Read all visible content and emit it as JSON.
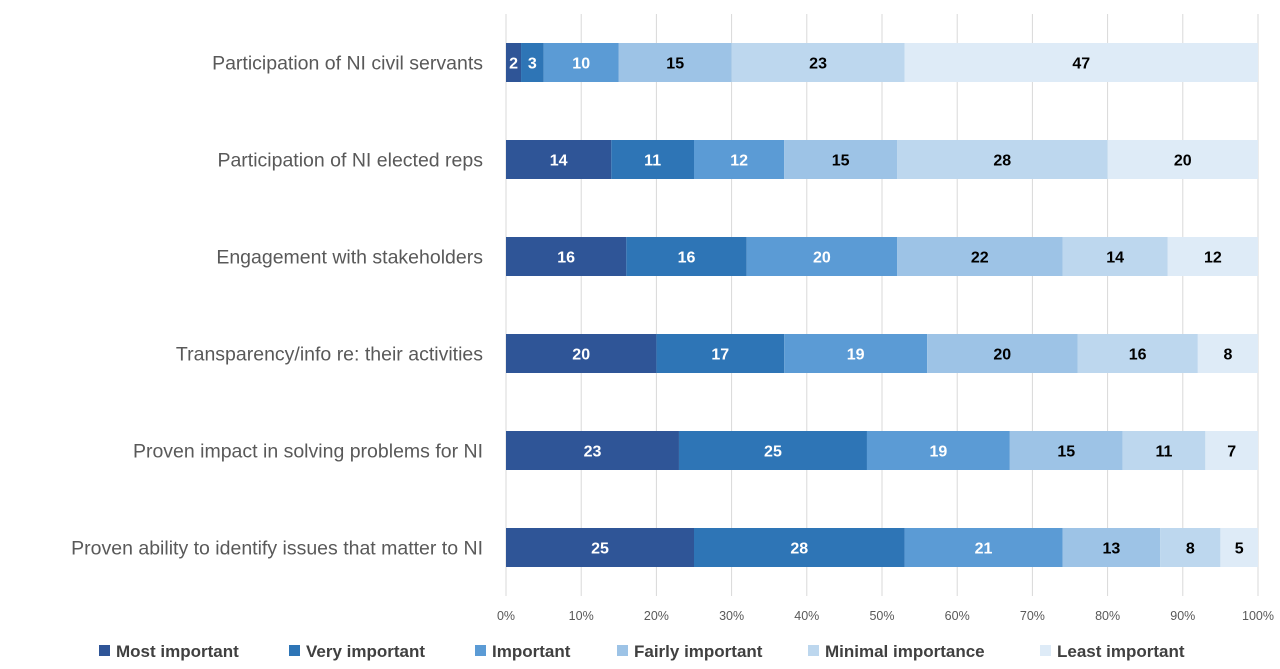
{
  "chart_data": {
    "type": "bar",
    "orientation": "horizontal",
    "stacked": "percent",
    "title": "",
    "xlabel": "",
    "ylabel": "",
    "xlim": [
      0,
      100
    ],
    "x_tick_labels": [
      "0%",
      "10%",
      "20%",
      "30%",
      "40%",
      "50%",
      "60%",
      "70%",
      "80%",
      "90%",
      "100%"
    ],
    "categories": [
      "Participation of NI civil servants",
      "Participation of NI elected reps",
      "Engagement with stakeholders",
      "Transparency/info re: their activities",
      "Proven impact in solving problems for NI",
      "Proven ability to identify issues that matter to NI"
    ],
    "series": [
      {
        "name": "Most important",
        "color": "#2f5597",
        "label_color": "#ffffff",
        "values": [
          2,
          14,
          16,
          20,
          23,
          25
        ]
      },
      {
        "name": "Very important",
        "color": "#2e75b6",
        "label_color": "#ffffff",
        "values": [
          3,
          11,
          16,
          17,
          25,
          28
        ]
      },
      {
        "name": "Important",
        "color": "#5b9bd5",
        "label_color": "#ffffff",
        "values": [
          10,
          12,
          20,
          19,
          19,
          21
        ]
      },
      {
        "name": "Fairly important",
        "color": "#9dc3e6",
        "label_color": "#000000",
        "values": [
          15,
          15,
          22,
          20,
          15,
          13
        ]
      },
      {
        "name": "Minimal importance",
        "color": "#bdd7ee",
        "label_color": "#000000",
        "values": [
          23,
          28,
          14,
          16,
          11,
          8
        ]
      },
      {
        "name": "Least important",
        "color": "#deebf7",
        "label_color": "#000000",
        "values": [
          47,
          20,
          12,
          8,
          7,
          5
        ]
      }
    ],
    "grid": true,
    "legend_position": "bottom"
  }
}
